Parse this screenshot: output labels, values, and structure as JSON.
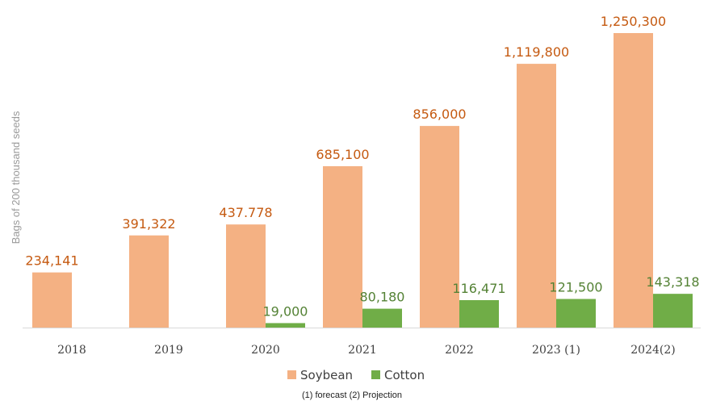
{
  "chart_data": {
    "type": "bar",
    "categories": [
      "2018",
      "2019",
      "2020",
      "2021",
      "2022",
      "2023 (1)",
      "2024(2)"
    ],
    "series": [
      {
        "name": "Soybean",
        "color": "#F4B183",
        "label_color": "#C55A11",
        "values": [
          234141,
          391322,
          437778,
          685100,
          856000,
          1119800,
          1250300
        ],
        "labels": [
          "234,141",
          "391,322",
          "437.778",
          "685,100",
          "856,000",
          "1,119,800",
          "1,250,300"
        ]
      },
      {
        "name": "Cotton",
        "color": "#70AD47",
        "label_color": "#548235",
        "values": [
          null,
          null,
          19000,
          80180,
          116471,
          121500,
          143318
        ],
        "labels": [
          "",
          "",
          "19,000",
          "80,180",
          "116,471",
          "121,500",
          "143,318"
        ]
      }
    ],
    "ylabel": "Bags of 200 thousand seeds",
    "xlabel": "",
    "ylim": [
      0,
      1250300
    ],
    "grid": false,
    "legend_position": "bottom",
    "footnote": "(1) forecast  (2) Projection"
  }
}
